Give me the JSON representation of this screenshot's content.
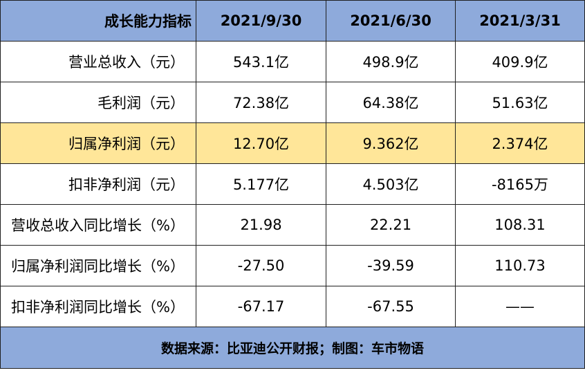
{
  "table": {
    "header": {
      "label": "成长能力指标",
      "periods": [
        "2021/9/30",
        "2021/6/30",
        "2021/3/31"
      ]
    },
    "rows": [
      {
        "label": "营业总收入（元）",
        "values": [
          "543.1亿",
          "498.9亿",
          "409.9亿"
        ]
      },
      {
        "label": "毛利润（元）",
        "values": [
          "72.38亿",
          "64.38亿",
          "51.63亿"
        ]
      },
      {
        "label": "归属净利润（元）",
        "values": [
          "12.70亿",
          "9.362亿",
          "2.374亿"
        ],
        "highlighted": true
      },
      {
        "label": "扣非净利润（元）",
        "values": [
          "5.177亿",
          "4.503亿",
          "-8165万"
        ]
      },
      {
        "label": "营收总收入同比增长（%）",
        "values": [
          "21.98",
          "22.21",
          "108.31"
        ]
      },
      {
        "label": "归属净利润同比增长（%）",
        "values": [
          "-27.50",
          "-39.59",
          "110.73"
        ]
      },
      {
        "label": "扣非净利润同比增长（%）",
        "values": [
          "-67.17",
          "-67.55",
          "——"
        ]
      }
    ],
    "footer": "数据来源：比亚迪公开财报；制图：车市物语"
  },
  "colors": {
    "header_bg": "#8eaadb",
    "highlight_bg": "#ffe699",
    "border": "#1f1f1f"
  }
}
